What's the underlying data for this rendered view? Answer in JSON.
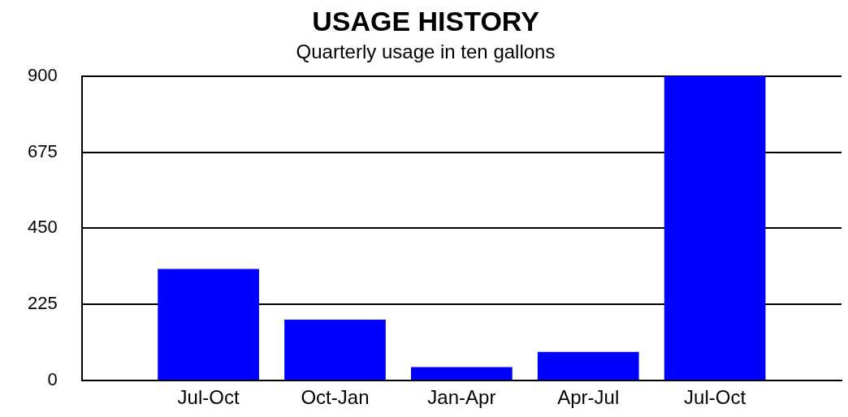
{
  "chart_data": {
    "type": "bar",
    "title": "USAGE HISTORY",
    "subtitle": "Quarterly usage in ten gallons",
    "categories": [
      null,
      "Jul-Oct",
      "Oct-Jan",
      "Jan-Apr",
      "Apr-Jul",
      "Jul-Oct",
      null
    ],
    "values": [
      null,
      330,
      180,
      40,
      85,
      900,
      null
    ],
    "color": "#0000ff",
    "ylim": [
      0,
      900
    ],
    "yticks": [
      0,
      225,
      450,
      675,
      900
    ],
    "grid": "y"
  }
}
